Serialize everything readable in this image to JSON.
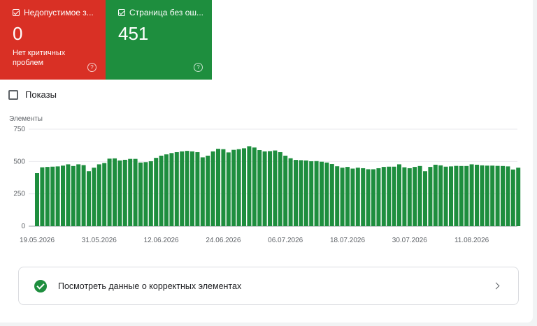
{
  "cards": {
    "error": {
      "title": "Недопустимое з...",
      "count": "0",
      "subtitle": "Нет критичных проблем",
      "color": "#d93025",
      "help_icon": "help-circle-icon"
    },
    "valid": {
      "title": "Страница без ош...",
      "count": "451",
      "color": "#1e8e3e",
      "help_icon": "help-circle-icon"
    }
  },
  "impressions_toggle": {
    "label": "Показы",
    "checked": false
  },
  "chart_data": {
    "type": "bar",
    "ylabel": "Элементы",
    "ylim": [
      0,
      750
    ],
    "yticks": [
      "0",
      "250",
      "500",
      "750"
    ],
    "xticks": [
      "19.05.2026",
      "31.05.2026",
      "12.06.2026",
      "24.06.2026",
      "06.07.2026",
      "18.07.2026",
      "30.07.2026",
      "11.08.2026"
    ],
    "color": "#1e8e3e",
    "start_date": "19.05.2026",
    "values": [
      410,
      455,
      458,
      460,
      462,
      468,
      478,
      465,
      478,
      472,
      425,
      452,
      478,
      488,
      522,
      524,
      508,
      513,
      520,
      520,
      492,
      495,
      502,
      528,
      545,
      555,
      565,
      572,
      578,
      582,
      578,
      572,
      532,
      545,
      578,
      598,
      595,
      570,
      590,
      595,
      602,
      618,
      608,
      588,
      578,
      580,
      585,
      572,
      545,
      525,
      512,
      510,
      508,
      502,
      503,
      498,
      492,
      480,
      463,
      452,
      458,
      445,
      452,
      448,
      440,
      440,
      448,
      458,
      460,
      460,
      478,
      455,
      448,
      458,
      465,
      425,
      458,
      475,
      470,
      460,
      462,
      466,
      465,
      465,
      478,
      475,
      470,
      468,
      468,
      466,
      465,
      462,
      438,
      452
    ]
  },
  "footer": {
    "label": "Посмотреть данные о корректных элементах",
    "icon": "check-circle-icon",
    "chevron": "chevron-right-icon"
  }
}
